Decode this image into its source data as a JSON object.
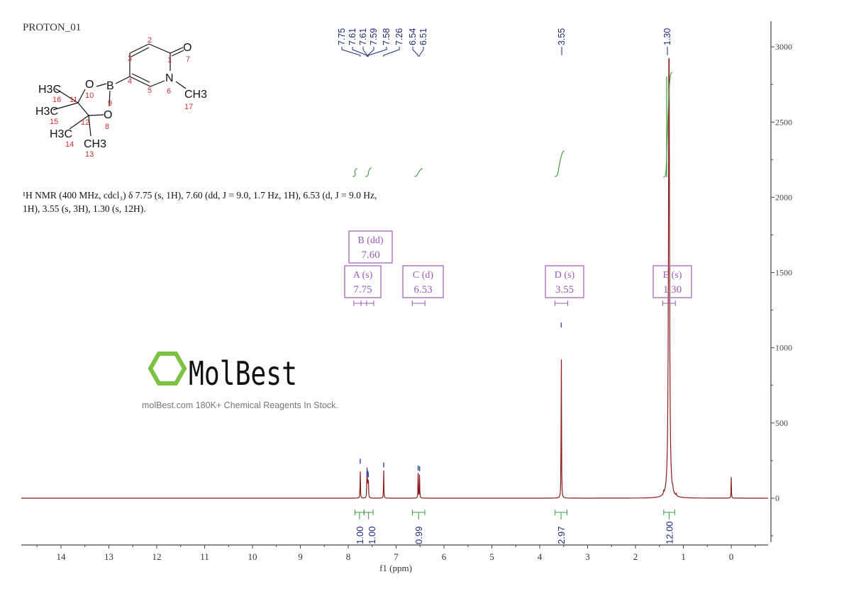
{
  "experiment_label": "PROTON_01",
  "description_line1": "¹H NMR (400 MHz, cdcl₃) δ 7.75 (s, 1H), 7.60 (dd, J = 9.0, 1.7 Hz, 1H), 6.53 (d, J = 9.0 Hz,",
  "description_line2": "1H), 3.55 (s, 3H), 1.30 (s, 12H).",
  "watermark": {
    "brand": "MolBest",
    "tagline": "molBest.com 180K+ Chemical Reagents In Stock."
  },
  "structure": {
    "atoms": [
      "O",
      "N",
      "CH3",
      "B",
      "O",
      "O",
      "H3C",
      "H3C",
      "H3C",
      "CH3"
    ],
    "numbers": [
      "1",
      "2",
      "3",
      "4",
      "5",
      "6",
      "7",
      "8",
      "9",
      "10",
      "11",
      "12",
      "13",
      "14",
      "15",
      "16",
      "17"
    ]
  },
  "colors": {
    "spectrum": "#8b1a1a",
    "integral": "#3c9a3c",
    "peak_label": "#1f2a80",
    "multiplet": "#9b59b6",
    "axis": "#444444"
  },
  "chart_data": {
    "type": "line",
    "xlabel": "f1 (ppm)",
    "xlim": [
      14.8,
      -0.8
    ],
    "x_reversed": true,
    "xticks": [
      14,
      13,
      12,
      11,
      10,
      9,
      8,
      7,
      6,
      5,
      4,
      3,
      2,
      1,
      0
    ],
    "ylim": [
      -300,
      3200
    ],
    "yticks": [
      0,
      500,
      1000,
      1500,
      2000,
      2500,
      3000
    ],
    "peaks": [
      {
        "ppm": 7.75,
        "intensity": 215
      },
      {
        "ppm": 7.61,
        "intensity": 130
      },
      {
        "ppm": 7.605,
        "intensity": 140
      },
      {
        "ppm": 7.59,
        "intensity": 135
      },
      {
        "ppm": 7.58,
        "intensity": 125
      },
      {
        "ppm": 7.26,
        "intensity": 190
      },
      {
        "ppm": 6.54,
        "intensity": 170
      },
      {
        "ppm": 6.51,
        "intensity": 165
      },
      {
        "ppm": 3.55,
        "intensity": 1120
      },
      {
        "ppm": 1.3,
        "intensity": 3200
      },
      {
        "ppm": 1.41,
        "intensity": 25
      },
      {
        "ppm": 1.22,
        "intensity": 25
      },
      {
        "ppm": 1.15,
        "intensity": 20
      },
      {
        "ppm": 0.0,
        "intensity": 140
      }
    ],
    "peak_labels": [
      "7.75",
      "7.61",
      "7.61",
      "7.59",
      "7.58",
      "7.26",
      "6.54",
      "6.51",
      "3.55",
      "1.30"
    ],
    "multiplets": [
      {
        "name": "A (s)",
        "shift": "7.75",
        "ppm": 7.75
      },
      {
        "name": "B (dd)",
        "shift": "7.60",
        "ppm": 7.6
      },
      {
        "name": "C (d)",
        "shift": "6.53",
        "ppm": 6.53
      },
      {
        "name": "D (s)",
        "shift": "3.55",
        "ppm": 3.55
      },
      {
        "name": "E (s)",
        "shift": "1.30",
        "ppm": 1.3
      }
    ],
    "integrals": [
      {
        "from": 7.86,
        "to": 7.67,
        "value": "1.00"
      },
      {
        "from": 7.67,
        "to": 7.48,
        "value": "1.00"
      },
      {
        "from": 6.66,
        "to": 6.4,
        "value": "0.99"
      },
      {
        "from": 3.68,
        "to": 3.43,
        "value": "2.97"
      },
      {
        "from": 1.41,
        "to": 1.18,
        "value": "12.00"
      }
    ]
  }
}
